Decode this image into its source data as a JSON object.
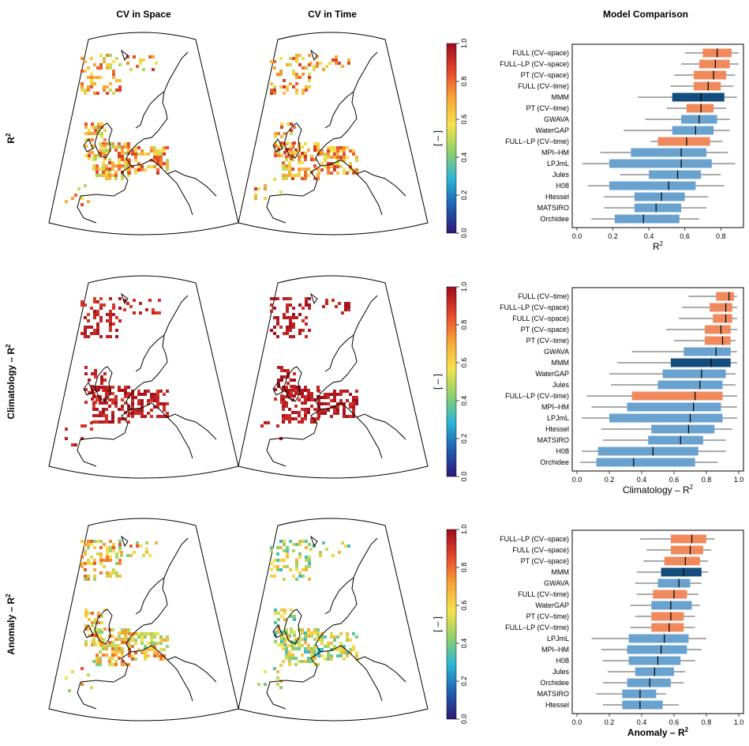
{
  "columns": [
    "CV in Space",
    "CV in Time",
    "Model Comparison"
  ],
  "colorbar": {
    "ticks": [
      "0.0",
      "0.2",
      "0.4",
      "0.6",
      "0.8",
      "1.0"
    ],
    "unit": "[ – ]",
    "stops": [
      "#2b1a78",
      "#1f5fb0",
      "#2bb5d8",
      "#8fd06a",
      "#f6e24a",
      "#f7a437",
      "#e5452b",
      "#9e0b1d"
    ]
  },
  "colors": {
    "full_family": "#f08a5d",
    "mmm": "#124d7e",
    "models": "#6aa2cf",
    "whisker": "#555555"
  },
  "chart_data": [
    {
      "type": "boxplot",
      "row_label": "R",
      "row_label_sup": "2",
      "xlabel": "R",
      "xlabel_sup": "2",
      "xlabel_bold": false,
      "xlim": [
        0,
        0.9
      ],
      "xticks": [
        "0.0",
        "0.2",
        "0.4",
        "0.6",
        "0.8"
      ],
      "xtick_values": [
        0,
        0.2,
        0.4,
        0.6,
        0.8
      ],
      "categories": [
        "FULL (CV–space)",
        "FULL–LP (CV–space)",
        "PT (CV–space)",
        "FULL (CV–time)",
        "MMM",
        "PT (CV–time)",
        "GWAVA",
        "WaterGAP",
        "FULL–LP (CV–time)",
        "MPI–HM",
        "LPJmL",
        "Jules",
        "H08",
        "Htessel",
        "MATSIRO",
        "Orchidee"
      ],
      "kind": [
        "full",
        "full",
        "full",
        "full",
        "mmm",
        "full",
        "model",
        "model",
        "full",
        "model",
        "model",
        "model",
        "model",
        "model",
        "model",
        "model"
      ],
      "boxes": [
        {
          "min": 0.6,
          "q1": 0.7,
          "median": 0.78,
          "q3": 0.86,
          "max": 0.9
        },
        {
          "min": 0.58,
          "q1": 0.68,
          "median": 0.77,
          "q3": 0.85,
          "max": 0.9
        },
        {
          "min": 0.54,
          "q1": 0.65,
          "median": 0.76,
          "q3": 0.83,
          "max": 0.88
        },
        {
          "min": 0.52,
          "q1": 0.65,
          "median": 0.73,
          "q3": 0.8,
          "max": 0.87
        },
        {
          "min": 0.34,
          "q1": 0.53,
          "median": 0.69,
          "q3": 0.82,
          "max": 0.89
        },
        {
          "min": 0.5,
          "q1": 0.61,
          "median": 0.69,
          "q3": 0.76,
          "max": 0.83
        },
        {
          "min": 0.38,
          "q1": 0.58,
          "median": 0.68,
          "q3": 0.78,
          "max": 0.85
        },
        {
          "min": 0.26,
          "q1": 0.53,
          "median": 0.66,
          "q3": 0.76,
          "max": 0.85
        },
        {
          "min": 0.41,
          "q1": 0.45,
          "median": 0.61,
          "q3": 0.74,
          "max": 0.81
        },
        {
          "min": 0.13,
          "q1": 0.3,
          "median": 0.58,
          "q3": 0.72,
          "max": 0.84
        },
        {
          "min": 0.03,
          "q1": 0.18,
          "median": 0.58,
          "q3": 0.75,
          "max": 0.88
        },
        {
          "min": 0.24,
          "q1": 0.4,
          "median": 0.56,
          "q3": 0.69,
          "max": 0.8
        },
        {
          "min": 0.06,
          "q1": 0.18,
          "median": 0.51,
          "q3": 0.66,
          "max": 0.82
        },
        {
          "min": 0.15,
          "q1": 0.32,
          "median": 0.47,
          "q3": 0.6,
          "max": 0.73
        },
        {
          "min": 0.15,
          "q1": 0.32,
          "median": 0.44,
          "q3": 0.58,
          "max": 0.72
        },
        {
          "min": 0.08,
          "q1": 0.21,
          "median": 0.37,
          "q3": 0.57,
          "max": 0.68
        }
      ]
    },
    {
      "type": "boxplot",
      "row_label": "Climatology – R",
      "row_label_sup": "2",
      "xlabel": "Climatology – R",
      "xlabel_sup": "2",
      "xlabel_bold": false,
      "xlim": [
        0,
        1.0
      ],
      "xticks": [
        "0.0",
        "0.2",
        "0.4",
        "0.6",
        "0.8",
        "1.0"
      ],
      "xtick_values": [
        0,
        0.2,
        0.4,
        0.6,
        0.8,
        1.0
      ],
      "categories": [
        "FULL (CV–time)",
        "FULL–LP (CV–space)",
        "FULL (CV–space)",
        "PT (CV–space)",
        "PT (CV–time)",
        "GWAVA",
        "MMM",
        "WaterGAP",
        "Jules",
        "FULL–LP (CV–time)",
        "MPI–HM",
        "LPJmL",
        "Htessel",
        "MATSIRO",
        "H08",
        "Orchidee"
      ],
      "kind": [
        "full",
        "full",
        "full",
        "full",
        "full",
        "model",
        "mmm",
        "model",
        "model",
        "full",
        "model",
        "model",
        "model",
        "model",
        "model",
        "model"
      ],
      "boxes": [
        {
          "min": 0.69,
          "q1": 0.86,
          "median": 0.94,
          "q3": 0.97,
          "max": 0.99
        },
        {
          "min": 0.65,
          "q1": 0.82,
          "median": 0.92,
          "q3": 0.96,
          "max": 0.99
        },
        {
          "min": 0.63,
          "q1": 0.84,
          "median": 0.92,
          "q3": 0.96,
          "max": 0.99
        },
        {
          "min": 0.55,
          "q1": 0.79,
          "median": 0.89,
          "q3": 0.95,
          "max": 0.99
        },
        {
          "min": 0.6,
          "q1": 0.79,
          "median": 0.9,
          "q3": 0.95,
          "max": 0.98
        },
        {
          "min": 0.34,
          "q1": 0.66,
          "median": 0.86,
          "q3": 0.95,
          "max": 0.99
        },
        {
          "min": 0.25,
          "q1": 0.58,
          "median": 0.83,
          "q3": 0.95,
          "max": 0.99
        },
        {
          "min": 0.2,
          "q1": 0.53,
          "median": 0.77,
          "q3": 0.92,
          "max": 0.98
        },
        {
          "min": 0.21,
          "q1": 0.5,
          "median": 0.76,
          "q3": 0.9,
          "max": 0.98
        },
        {
          "min": 0.06,
          "q1": 0.34,
          "median": 0.73,
          "q3": 0.9,
          "max": 0.99
        },
        {
          "min": 0.09,
          "q1": 0.31,
          "median": 0.72,
          "q3": 0.89,
          "max": 0.99
        },
        {
          "min": 0.03,
          "q1": 0.2,
          "median": 0.7,
          "q3": 0.9,
          "max": 0.99
        },
        {
          "min": 0.15,
          "q1": 0.46,
          "median": 0.69,
          "q3": 0.85,
          "max": 0.96
        },
        {
          "min": 0.16,
          "q1": 0.44,
          "median": 0.64,
          "q3": 0.78,
          "max": 0.92
        },
        {
          "min": 0.03,
          "q1": 0.13,
          "median": 0.47,
          "q3": 0.75,
          "max": 0.92
        },
        {
          "min": 0.02,
          "q1": 0.12,
          "median": 0.35,
          "q3": 0.73,
          "max": 0.87
        }
      ]
    },
    {
      "type": "boxplot",
      "row_label": "Anomaly – R",
      "row_label_sup": "2",
      "xlabel": "Anomaly – R",
      "xlabel_sup": "2",
      "xlabel_bold": true,
      "xlim": [
        0,
        1.0
      ],
      "xticks": [
        "0.0",
        "0.2",
        "0.4",
        "0.6",
        "0.8",
        "1.0"
      ],
      "xtick_values": [
        0,
        0.2,
        0.4,
        0.6,
        0.8,
        1.0
      ],
      "categories": [
        "FULL–LP (CV–space)",
        "FULL (CV–space)",
        "PT (CV–space)",
        "MMM",
        "GWAVA",
        "FULL (CV–time)",
        "WaterGAP",
        "PT (CV–time)",
        "FULL–LP (CV–time)",
        "LPJmL",
        "MPI–HM",
        "H08",
        "Jules",
        "Orchidee",
        "MATSIRO",
        "Htessel"
      ],
      "kind": [
        "full",
        "full",
        "full",
        "mmm",
        "model",
        "full",
        "model",
        "full",
        "full",
        "model",
        "model",
        "model",
        "model",
        "model",
        "model",
        "model"
      ],
      "boxes": [
        {
          "min": 0.39,
          "q1": 0.58,
          "median": 0.71,
          "q3": 0.8,
          "max": 0.85
        },
        {
          "min": 0.43,
          "q1": 0.58,
          "median": 0.7,
          "q3": 0.78,
          "max": 0.83
        },
        {
          "min": 0.41,
          "q1": 0.54,
          "median": 0.67,
          "q3": 0.76,
          "max": 0.81
        },
        {
          "min": 0.37,
          "q1": 0.52,
          "median": 0.66,
          "q3": 0.77,
          "max": 0.81
        },
        {
          "min": 0.36,
          "q1": 0.5,
          "median": 0.63,
          "q3": 0.7,
          "max": 0.77
        },
        {
          "min": 0.37,
          "q1": 0.47,
          "median": 0.6,
          "q3": 0.68,
          "max": 0.75
        },
        {
          "min": 0.33,
          "q1": 0.46,
          "median": 0.58,
          "q3": 0.71,
          "max": 0.76
        },
        {
          "min": 0.36,
          "q1": 0.46,
          "median": 0.58,
          "q3": 0.66,
          "max": 0.73
        },
        {
          "min": 0.33,
          "q1": 0.46,
          "median": 0.57,
          "q3": 0.66,
          "max": 0.73
        },
        {
          "min": 0.09,
          "q1": 0.32,
          "median": 0.54,
          "q3": 0.69,
          "max": 0.8
        },
        {
          "min": 0.15,
          "q1": 0.31,
          "median": 0.52,
          "q3": 0.68,
          "max": 0.77
        },
        {
          "min": 0.16,
          "q1": 0.32,
          "median": 0.5,
          "q3": 0.64,
          "max": 0.73
        },
        {
          "min": 0.19,
          "q1": 0.36,
          "median": 0.48,
          "q3": 0.6,
          "max": 0.67
        },
        {
          "min": 0.16,
          "q1": 0.31,
          "median": 0.45,
          "q3": 0.58,
          "max": 0.66
        },
        {
          "min": 0.12,
          "q1": 0.28,
          "median": 0.39,
          "q3": 0.49,
          "max": 0.55
        },
        {
          "min": 0.16,
          "q1": 0.28,
          "median": 0.39,
          "q3": 0.53,
          "max": 0.63
        }
      ]
    }
  ],
  "maps": [
    {
      "mean": 0.68,
      "spread": 0.22
    },
    {
      "mean": 0.7,
      "spread": 0.2
    },
    {
      "mean": 0.93,
      "spread": 0.06
    },
    {
      "mean": 0.95,
      "spread": 0.05
    },
    {
      "mean": 0.62,
      "spread": 0.22
    },
    {
      "mean": 0.5,
      "spread": 0.2
    }
  ]
}
